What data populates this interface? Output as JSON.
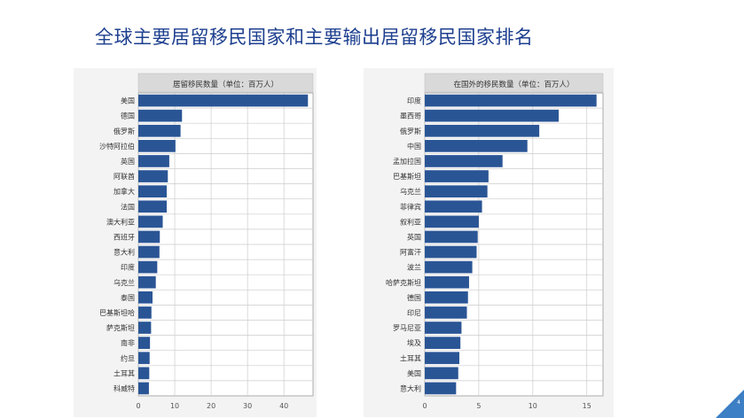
{
  "slide": {
    "title": "全球主要居留移民国家和主要输出居留移民国家排名",
    "page_number": "4"
  },
  "colors": {
    "bar": "#2a5595",
    "title": "#1d3f8f",
    "header_bg": "#d9d9d9",
    "grid": "#cccccc",
    "corner": "#3d7fc4"
  },
  "chart_data": [
    {
      "type": "bar",
      "orientation": "horizontal",
      "title": "居留移民数量（单位：百万人）",
      "categories": [
        "美国",
        "德国",
        "俄罗斯",
        "沙特阿拉伯",
        "英国",
        "阿联酋",
        "加拿大",
        "法国",
        "澳大利亚",
        "西班牙",
        "意大利",
        "印度",
        "乌克兰",
        "泰国",
        "巴基斯坦哈",
        "萨克斯坦",
        "南非",
        "约旦",
        "土耳其",
        "科威特"
      ],
      "values": [
        46.6,
        12.0,
        11.6,
        10.2,
        8.5,
        8.1,
        7.8,
        7.8,
        6.7,
        5.9,
        5.8,
        5.2,
        4.8,
        3.9,
        3.6,
        3.5,
        3.2,
        3.1,
        3.0,
        2.9
      ],
      "xlim": [
        0,
        48
      ],
      "xticks": [
        0,
        10,
        20,
        30,
        40
      ],
      "grid": true
    },
    {
      "type": "bar",
      "orientation": "horizontal",
      "title": "在国外的移民数量（单位：百万人）",
      "categories": [
        "印度",
        "墨西哥",
        "俄罗斯",
        "中国",
        "孟加拉国",
        "巴基斯坦",
        "乌克兰",
        "菲律宾",
        "叙利亚",
        "英国",
        "阿富汗",
        "波兰",
        "哈萨克斯坦",
        "德国",
        "印尼",
        "罗马尼亚",
        "埃及",
        "土耳其",
        "美国",
        "意大利"
      ],
      "values": [
        15.9,
        12.4,
        10.6,
        9.5,
        7.2,
        5.9,
        5.8,
        5.3,
        5.0,
        4.9,
        4.8,
        4.4,
        4.1,
        4.0,
        3.9,
        3.4,
        3.3,
        3.2,
        3.1,
        2.9
      ],
      "xlim": [
        0,
        16.5
      ],
      "xticks": [
        0,
        5,
        10,
        15
      ],
      "grid": true
    }
  ]
}
